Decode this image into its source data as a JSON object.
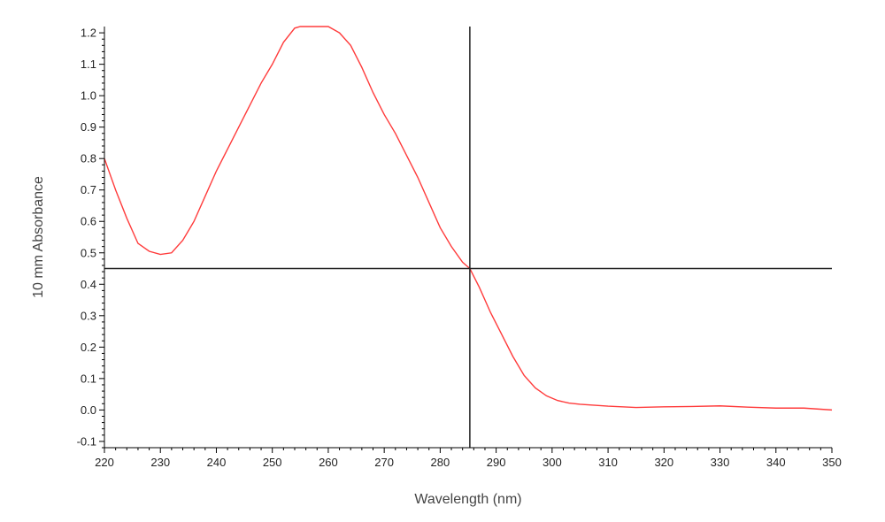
{
  "chart_data": {
    "type": "line",
    "title": "",
    "xlabel": "Wavelength (nm)",
    "ylabel": "10 mm Absorbance",
    "xlim": [
      220,
      350
    ],
    "ylim": [
      -0.12,
      1.22
    ],
    "x_ticks": [
      "220",
      "230",
      "240",
      "250",
      "260",
      "270",
      "280",
      "290",
      "300",
      "310",
      "320",
      "330",
      "340",
      "350"
    ],
    "y_ticks": [
      "-0.1",
      "0.0",
      "0.1",
      "0.2",
      "0.3",
      "0.4",
      "0.5",
      "0.6",
      "0.7",
      "0.8",
      "0.9",
      "1.0",
      "1.1",
      "1.2"
    ],
    "grid": false,
    "legend": "none",
    "series": [
      {
        "color": "#ff3b3b",
        "x": [
          220,
          222,
          224,
          226,
          228,
          230,
          232,
          234,
          236,
          238,
          240,
          242,
          244,
          246,
          248,
          250,
          252,
          254,
          255,
          256,
          258,
          260,
          262,
          264,
          266,
          268,
          270,
          272,
          274,
          276,
          278,
          280,
          282,
          284,
          285.3,
          287,
          289,
          291,
          293,
          295,
          297,
          299,
          301,
          303,
          305,
          310,
          315,
          320,
          325,
          330,
          335,
          340,
          345,
          350
        ],
        "y": [
          0.8,
          0.7,
          0.61,
          0.53,
          0.505,
          0.495,
          0.5,
          0.54,
          0.6,
          0.68,
          0.76,
          0.83,
          0.9,
          0.97,
          1.04,
          1.1,
          1.17,
          1.215,
          1.22,
          1.22,
          1.22,
          1.22,
          1.2,
          1.16,
          1.09,
          1.01,
          0.94,
          0.88,
          0.81,
          0.74,
          0.66,
          0.58,
          0.52,
          0.47,
          0.45,
          0.39,
          0.31,
          0.24,
          0.17,
          0.11,
          0.07,
          0.045,
          0.03,
          0.022,
          0.018,
          0.012,
          0.008,
          0.01,
          0.011,
          0.013,
          0.009,
          0.006,
          0.006,
          0.0
        ]
      }
    ],
    "crosshair": {
      "x": 285.3,
      "y": 0.45,
      "color": "#222222"
    }
  }
}
